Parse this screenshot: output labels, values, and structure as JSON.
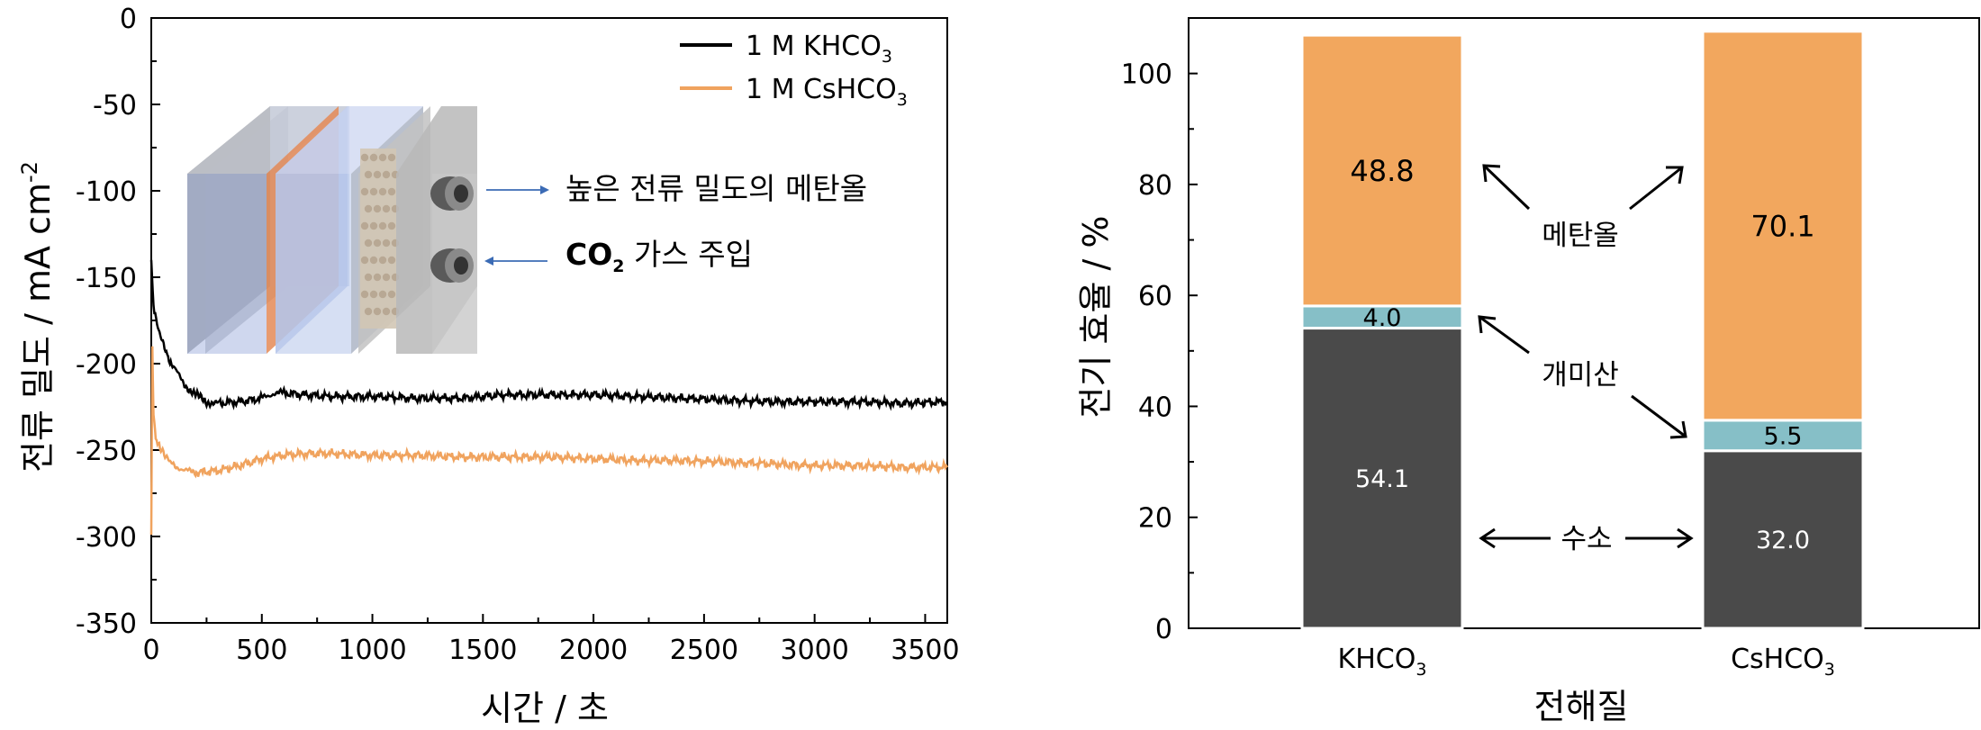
{
  "chart_data": [
    {
      "type": "line",
      "xlabel": "시간 / 초",
      "ylabel": "전류 밀도 / mA cm⁻²",
      "xlim": [
        0,
        3600
      ],
      "ylim": [
        -350,
        0
      ],
      "x_ticks": [
        "0",
        "500",
        "1000",
        "1500",
        "2000",
        "2500",
        "3000",
        "3500"
      ],
      "y_ticks": [
        "0",
        "-50",
        "-100",
        "-150",
        "-200",
        "-250",
        "-300",
        "-350"
      ],
      "legend": {
        "placement": "top-right",
        "entries": [
          "1 M KHCO3",
          "1 M CsHCO3"
        ]
      },
      "series": [
        {
          "name": "1 M KHCO3",
          "color": "#000000",
          "x": [
            0,
            10,
            30,
            60,
            100,
            150,
            200,
            250,
            300,
            400,
            500,
            550,
            600,
            700,
            800,
            900,
            1000,
            1200,
            1400,
            1600,
            1800,
            2000,
            2200,
            2400,
            2600,
            2800,
            3000,
            3200,
            3400,
            3600
          ],
          "y": [
            -140,
            -165,
            -180,
            -192,
            -202,
            -212,
            -218,
            -222,
            -223,
            -222,
            -220,
            -217,
            -217,
            -218,
            -219,
            -219,
            -219,
            -220,
            -220,
            -218,
            -218,
            -218,
            -219,
            -220,
            -221,
            -222,
            -222,
            -222,
            -223,
            -222
          ]
        },
        {
          "name": "1 M CsHCO3",
          "color": "#F0A35E",
          "x": [
            0,
            5,
            10,
            20,
            40,
            70,
            100,
            150,
            200,
            300,
            400,
            500,
            600,
            700,
            800,
            1000,
            1200,
            1400,
            1600,
            1800,
            2000,
            2200,
            2400,
            2600,
            2800,
            3000,
            3200,
            3400,
            3600
          ],
          "y": [
            -300,
            -190,
            -230,
            -243,
            -250,
            -255,
            -258,
            -262,
            -263,
            -262,
            -259,
            -255,
            -253,
            -252,
            -252,
            -253,
            -253,
            -254,
            -254,
            -254,
            -255,
            -256,
            -256,
            -257,
            -258,
            -259,
            -259,
            -260,
            -260
          ]
        }
      ],
      "annotations": [
        "높은 전류 밀도의 메탄올",
        "CO2 가스 주입"
      ]
    },
    {
      "type": "bar",
      "stacked": true,
      "xlabel": "전해질",
      "ylabel": "전기 효율 / %",
      "ylim": [
        0,
        110
      ],
      "y_ticks": [
        "0",
        "20",
        "40",
        "60",
        "80",
        "100"
      ],
      "categories": [
        "KHCO3",
        "CsHCO3"
      ],
      "series": [
        {
          "name": "수소",
          "color": "#4A4A4A",
          "values": [
            54.1,
            32.0
          ],
          "labels": [
            "54.1",
            "32.0"
          ]
        },
        {
          "name": "개미산",
          "color": "#86BFC7",
          "values": [
            4.0,
            5.5
          ],
          "labels": [
            "4.0",
            "5.5"
          ]
        },
        {
          "name": "메탄올",
          "color": "#F2A75E",
          "values": [
            48.8,
            70.1
          ],
          "labels": [
            "48.8",
            "70.1"
          ]
        }
      ],
      "annotations": [
        "메탄올",
        "개미산",
        "수소"
      ]
    }
  ]
}
